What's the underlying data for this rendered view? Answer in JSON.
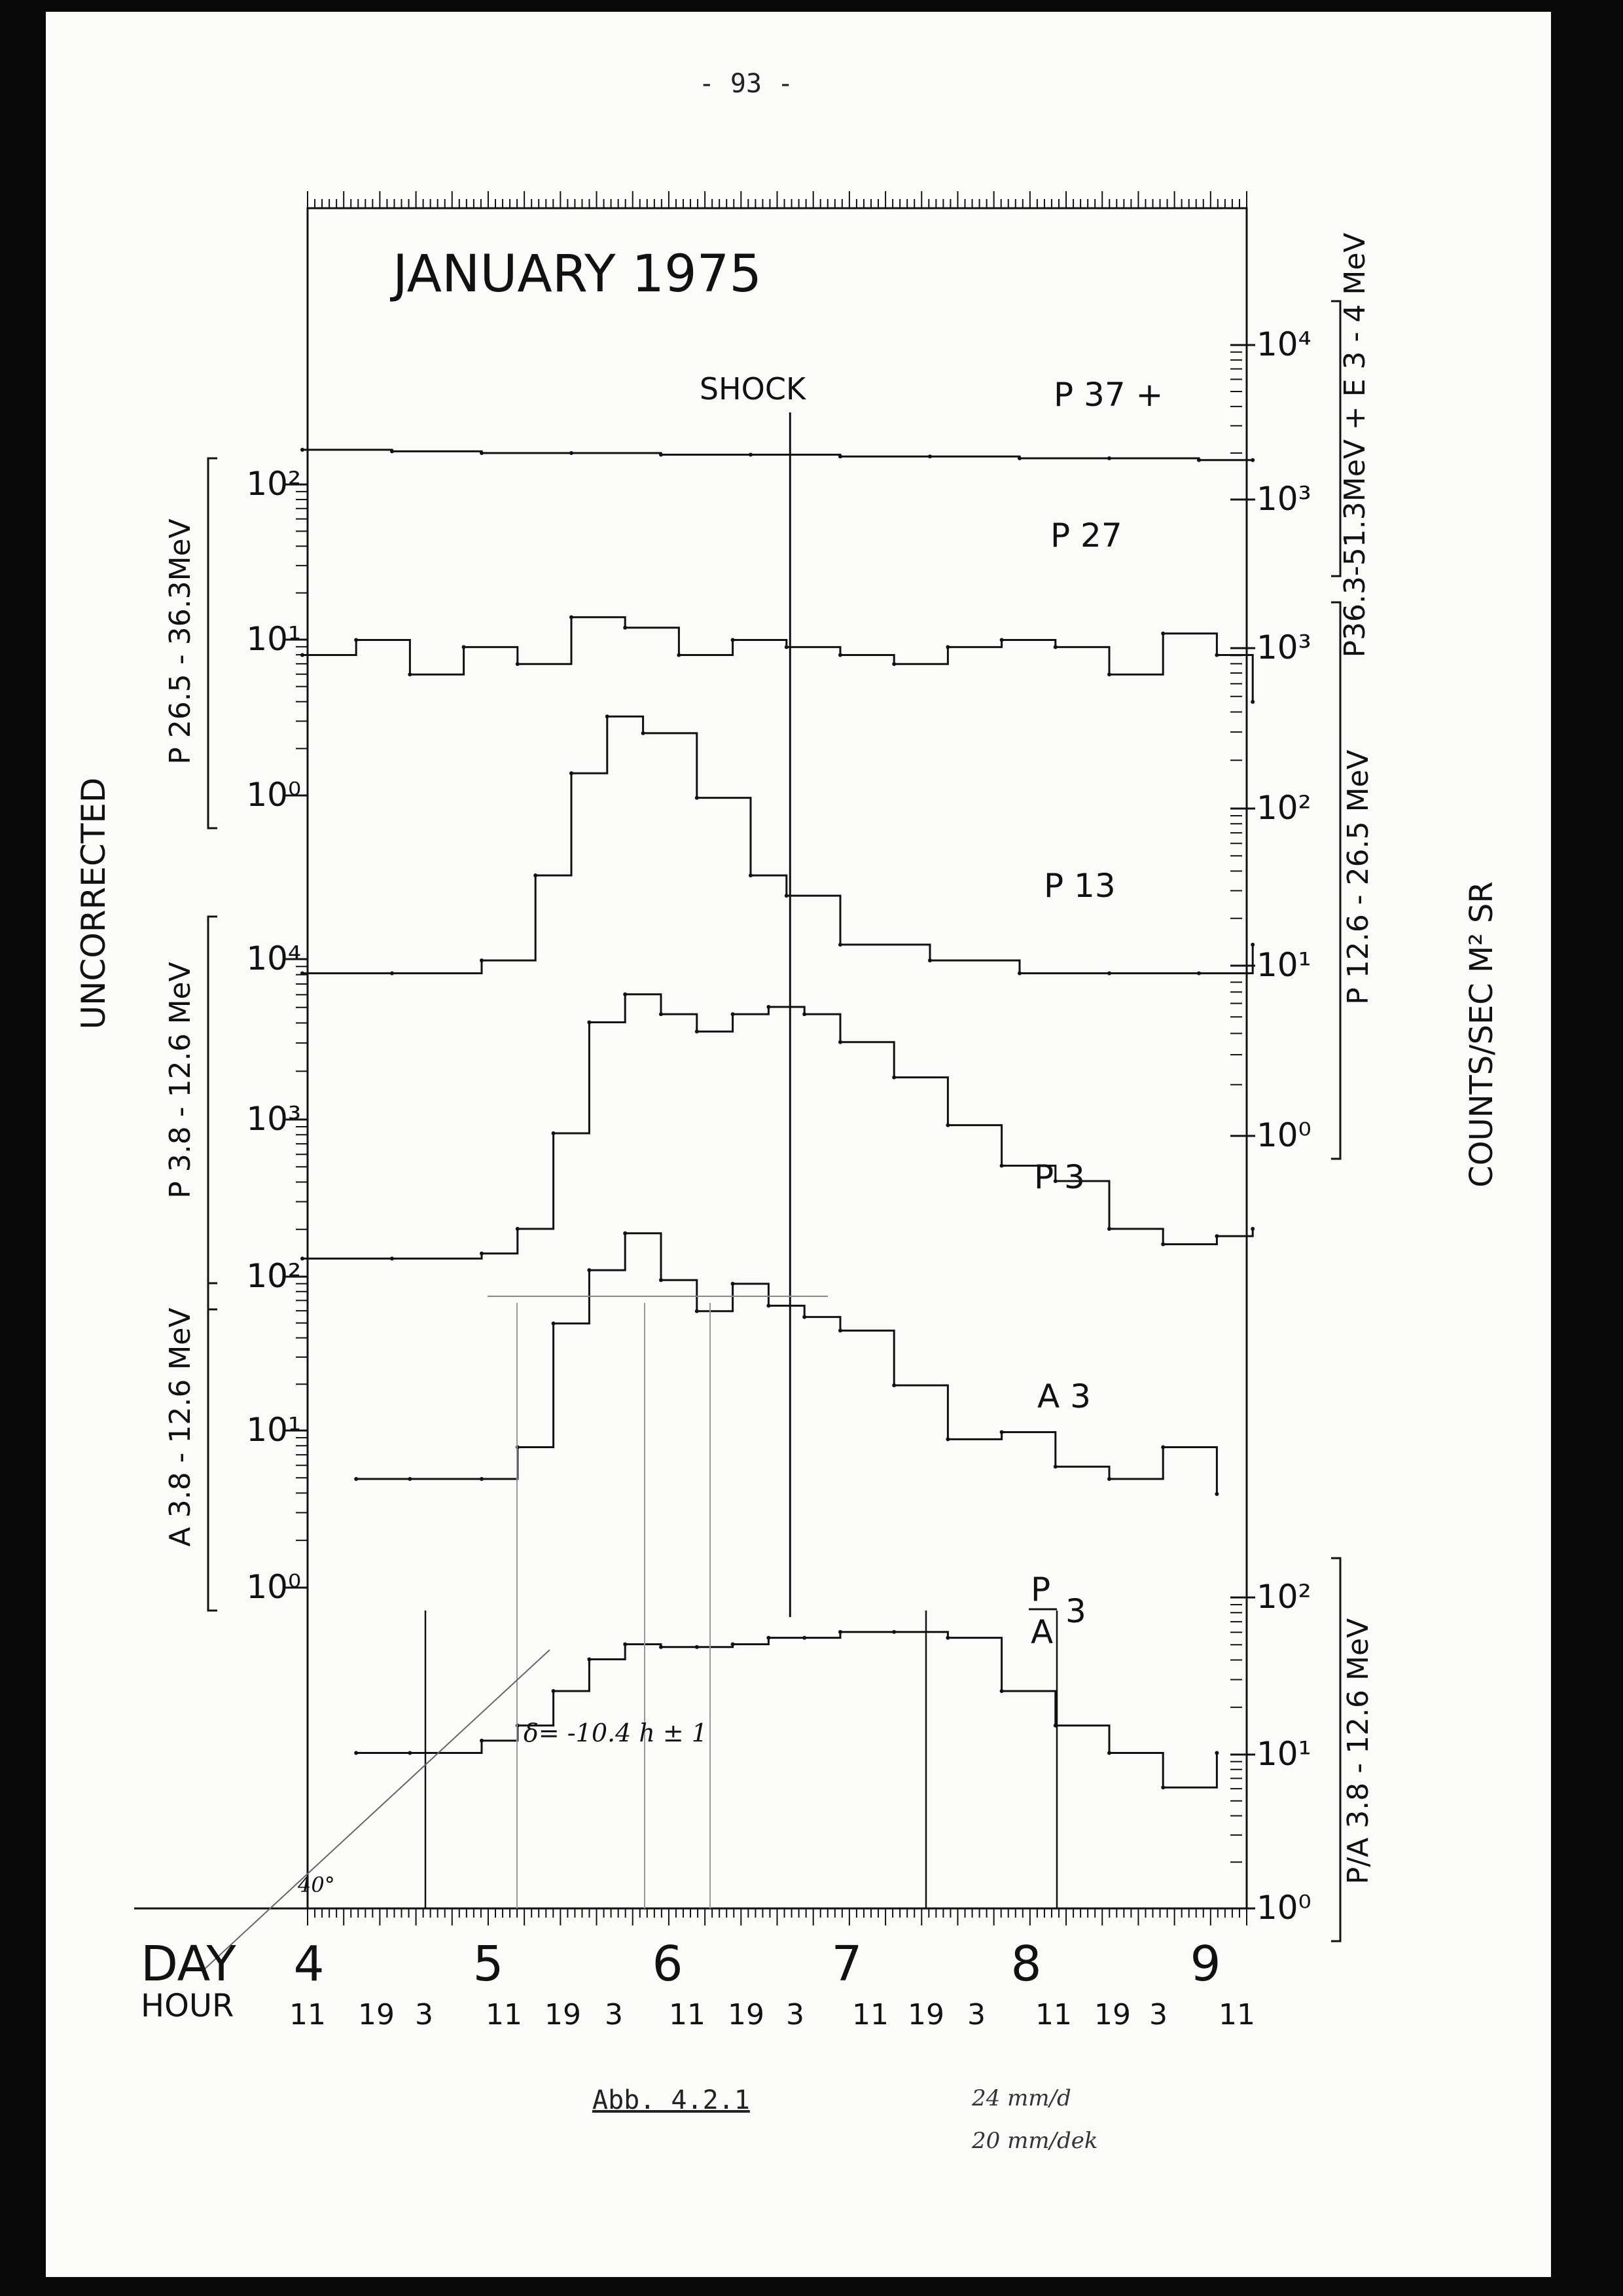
{
  "page": {
    "number": "- 93 -",
    "caption": "Abb. 4.2.1",
    "notes": [
      "24 mm/d",
      "20 mm/dek"
    ]
  },
  "chart_data": {
    "type": "line",
    "title": "JANUARY 1975",
    "annotation_shock": "SHOCK",
    "annotation_fit": "δ= -10.4 h ± 1",
    "annotation_angle": "40°",
    "left_title": "UNCORRECTED",
    "right_title": "COUNTS/SEC M² SR",
    "xlabel_day": "DAY",
    "xlabel_hour": "HOUR",
    "days": [
      "4",
      "5",
      "6",
      "7",
      "8",
      "9"
    ],
    "hour_ticks": [
      "11",
      "19",
      "3",
      "11",
      "19",
      "3",
      "11",
      "19",
      "3",
      "11",
      "19",
      "3",
      "11",
      "19",
      "3",
      "11",
      "19",
      "3",
      "11"
    ],
    "x_range_days": [
      3.9,
      9.3
    ],
    "shock_day": 6.72,
    "y_scale": "log",
    "panels": [
      {
        "channel": "P37+",
        "label": "P 37 +",
        "axis_label": "P36.3-51.3MeV + E 3 - 4 MeV",
        "axis_side": "right",
        "ticks": [
          "10³",
          "10⁴"
        ],
        "ylim": [
          1000,
          10000
        ]
      },
      {
        "channel": "P27",
        "label": "P 27",
        "axis_label": "P 26.5 - 36.3MeV",
        "axis_side": "left",
        "ticks": [
          "10⁰",
          "10¹",
          "10²"
        ],
        "ylim": [
          1,
          100
        ]
      },
      {
        "channel": "P13",
        "label": "P 13",
        "axis_label": "P 12.6 - 26.5 MeV",
        "axis_side": "right",
        "ticks": [
          "10⁰",
          "10¹",
          "10²",
          "10³"
        ],
        "ylim": [
          1,
          1000
        ]
      },
      {
        "channel": "P3",
        "label": "P 3",
        "axis_label": "P 3.8 - 12.6 MeV",
        "axis_side": "left",
        "ticks": [
          "10²",
          "10³",
          "10⁴"
        ],
        "ylim": [
          100,
          10000
        ]
      },
      {
        "channel": "A3",
        "label": "A 3",
        "axis_label": "A 3.8 - 12.6 MeV",
        "axis_side": "left",
        "ticks": [
          "10⁰",
          "10¹",
          "10²"
        ],
        "ylim": [
          1,
          100
        ]
      },
      {
        "channel": "P/A3",
        "label_top": "P",
        "label_bottom": "A",
        "label_suffix": "3",
        "axis_label": "P/A 3.8 - 12.6 MeV",
        "axis_side": "right",
        "ticks": [
          "10⁰",
          "10¹",
          "10²"
        ],
        "ylim": [
          1,
          100
        ]
      }
    ],
    "series": [
      {
        "name": "P37+",
        "x": [
          4.0,
          4.5,
          5.0,
          5.5,
          6.0,
          6.5,
          7.0,
          7.5,
          8.0,
          8.5,
          9.0,
          9.3
        ],
        "y": [
          2100,
          2050,
          2000,
          2000,
          1950,
          1950,
          1900,
          1900,
          1850,
          1850,
          1800,
          1800
        ]
      },
      {
        "name": "P27",
        "x": [
          4.0,
          4.3,
          4.6,
          4.9,
          5.2,
          5.5,
          5.8,
          6.1,
          6.4,
          6.7,
          7.0,
          7.3,
          7.6,
          7.9,
          8.2,
          8.5,
          8.8,
          9.1,
          9.3
        ],
        "y": [
          8,
          10,
          6,
          9,
          7,
          14,
          12,
          8,
          10,
          9,
          8,
          7,
          9,
          10,
          9,
          6,
          11,
          8,
          4
        ]
      },
      {
        "name": "P13",
        "x": [
          4.0,
          4.5,
          5.0,
          5.3,
          5.5,
          5.7,
          5.9,
          6.2,
          6.5,
          6.7,
          7.0,
          7.5,
          8.0,
          8.5,
          9.0,
          9.3
        ],
        "y": [
          10,
          10,
          12,
          40,
          170,
          380,
          300,
          120,
          40,
          30,
          15,
          12,
          10,
          10,
          10,
          15
        ]
      },
      {
        "name": "P3",
        "x": [
          4.0,
          4.5,
          5.0,
          5.2,
          5.4,
          5.6,
          5.8,
          6.0,
          6.2,
          6.4,
          6.6,
          6.8,
          7.0,
          7.3,
          7.6,
          7.9,
          8.2,
          8.5,
          8.8,
          9.1,
          9.3
        ],
        "y": [
          130,
          130,
          140,
          200,
          800,
          4000,
          6000,
          4500,
          3500,
          4500,
          5000,
          4500,
          3000,
          1800,
          900,
          500,
          400,
          200,
          160,
          180,
          200
        ]
      },
      {
        "name": "A3",
        "x": [
          4.3,
          4.6,
          5.0,
          5.2,
          5.4,
          5.6,
          5.8,
          6.0,
          6.2,
          6.4,
          6.6,
          6.8,
          7.0,
          7.3,
          7.6,
          7.9,
          8.2,
          8.5,
          8.8,
          9.1
        ],
        "y": [
          5,
          5,
          5,
          8,
          50,
          110,
          190,
          95,
          60,
          90,
          65,
          55,
          45,
          20,
          9,
          10,
          6,
          5,
          8,
          4
        ]
      },
      {
        "name": "P/A3",
        "x": [
          4.3,
          4.6,
          5.0,
          5.2,
          5.4,
          5.6,
          5.8,
          6.0,
          6.2,
          6.4,
          6.6,
          6.8,
          7.0,
          7.3,
          7.6,
          7.9,
          8.2,
          8.5,
          8.8,
          9.1
        ],
        "y": [
          10,
          10,
          12,
          15,
          25,
          40,
          50,
          48,
          48,
          50,
          55,
          55,
          60,
          60,
          55,
          25,
          15,
          10,
          6,
          10
        ]
      }
    ]
  }
}
